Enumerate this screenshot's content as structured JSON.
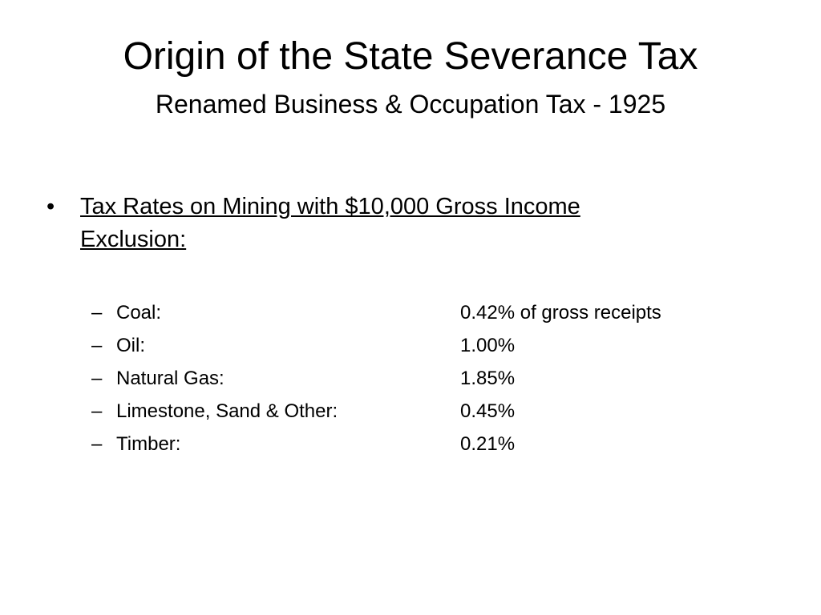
{
  "slide": {
    "title": "Origin of the State Severance Tax",
    "subtitle": "Renamed Business & Occupation Tax - 1925",
    "bullet": "Tax Rates on Mining with $10,000 Gross Income Exclusion:",
    "items": [
      {
        "label": "Coal:",
        "rate": "0.42% of gross receipts"
      },
      {
        "label": "Oil:",
        "rate": "1.00%"
      },
      {
        "label": "Natural Gas:",
        "rate": "1.85%"
      },
      {
        "label": "Limestone, Sand & Other:",
        "rate": "0.45%"
      },
      {
        "label": "Timber:",
        "rate": "0.21%"
      }
    ]
  }
}
